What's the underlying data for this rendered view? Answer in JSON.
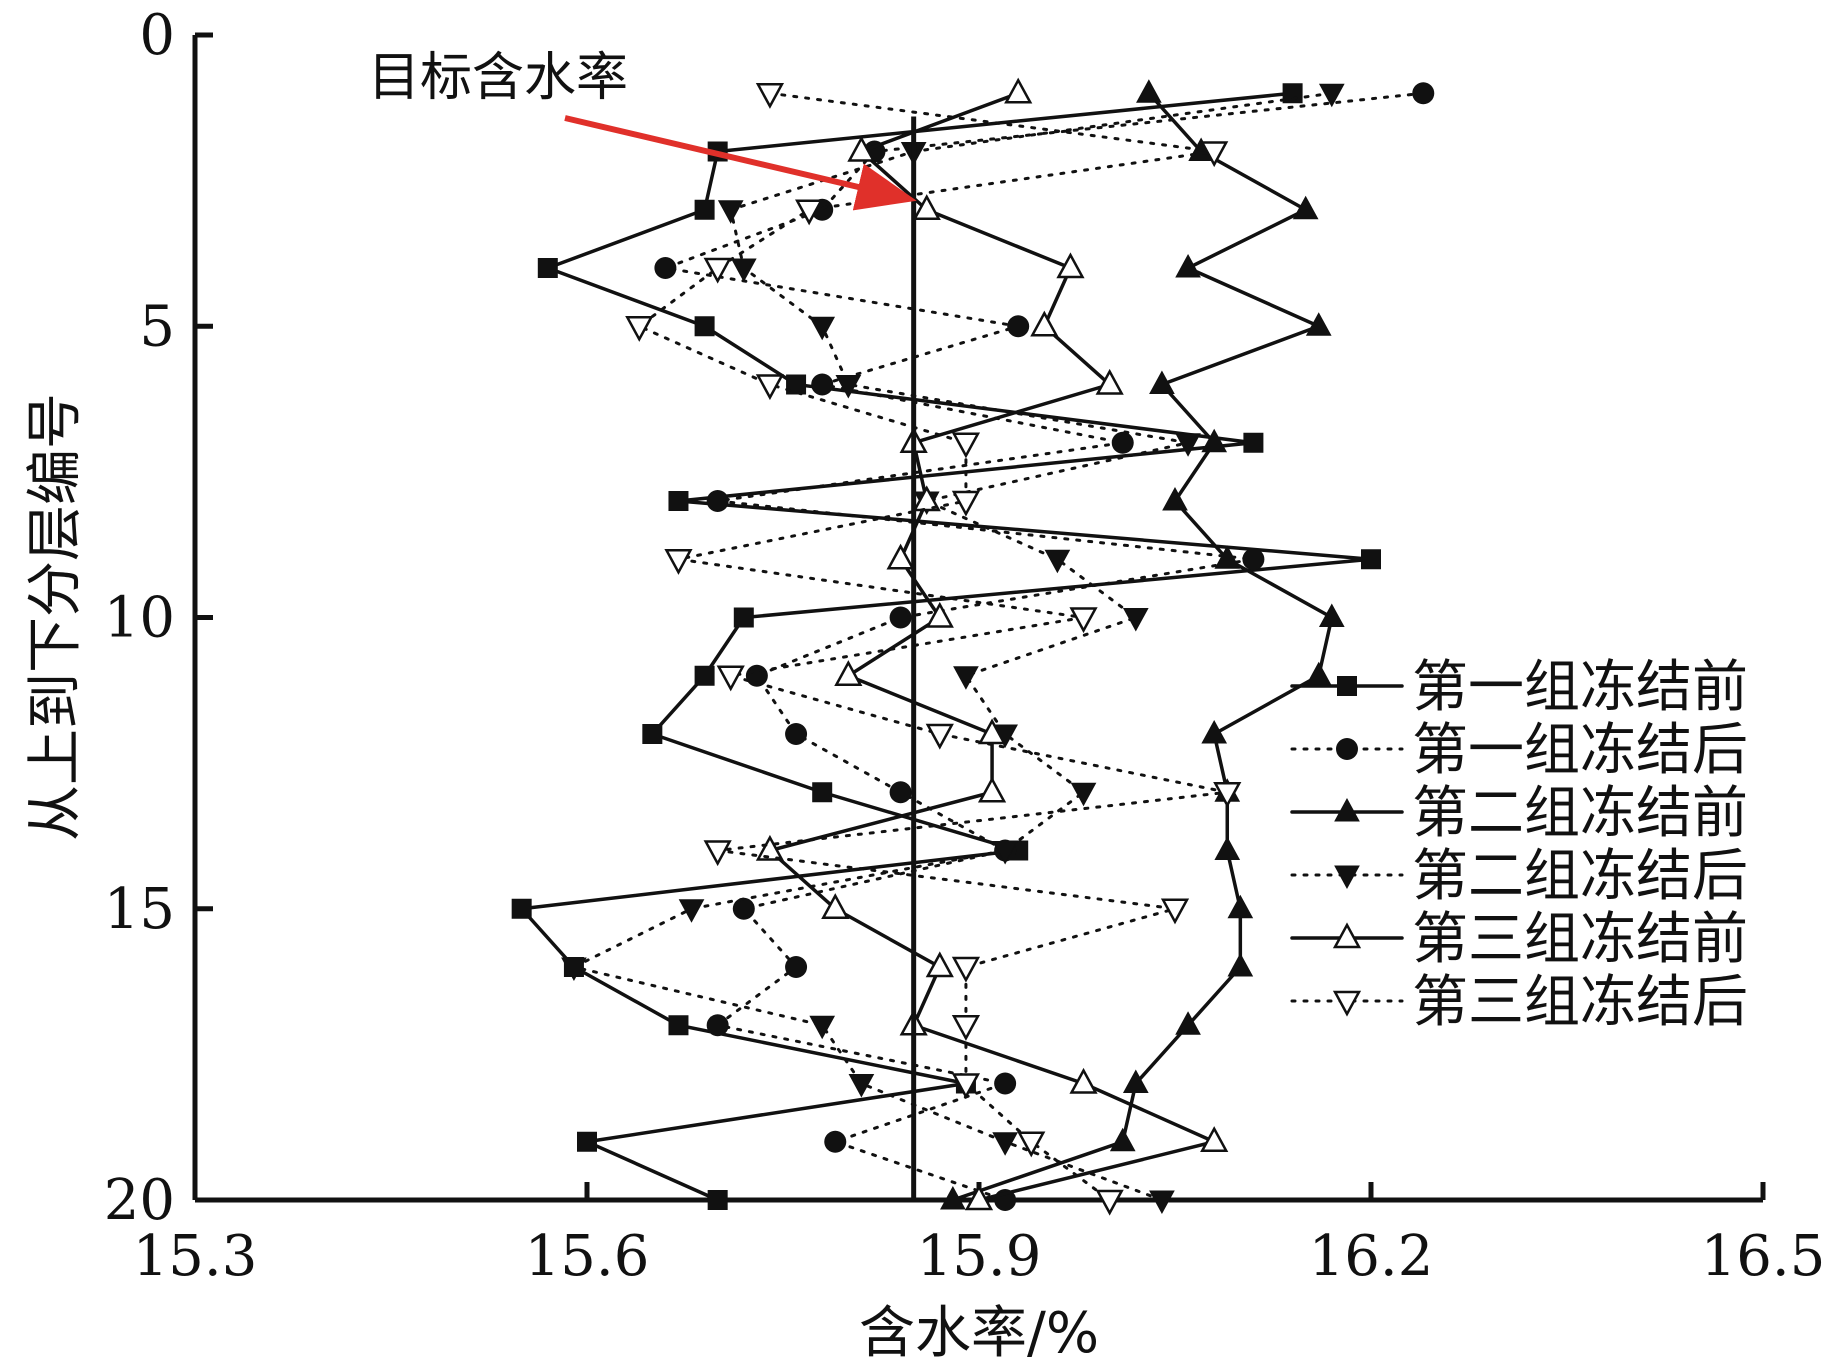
{
  "chart_data": {
    "type": "line",
    "title": "",
    "xlabel": "含水率/%",
    "ylabel": "从上到下分层编号",
    "xlim": [
      15.3,
      16.5
    ],
    "ylim": [
      0,
      20
    ],
    "y_inverted": true,
    "x_ticks": [
      "15.3",
      "15.6",
      "15.9",
      "16.2",
      "16.5"
    ],
    "y_ticks": [
      "0",
      "5",
      "10",
      "15",
      "20"
    ],
    "grid": false,
    "legend_position": "bottom-right",
    "target_line": {
      "x": 15.85
    },
    "annotation": {
      "text": "目标含水率"
    },
    "layers": [
      1,
      2,
      3,
      4,
      5,
      6,
      7,
      8,
      9,
      10,
      11,
      12,
      13,
      14,
      15,
      16,
      17,
      18,
      19,
      20
    ],
    "series": [
      {
        "name": "第一组冻结前",
        "line": "solid",
        "marker": "square-filled",
        "values": [
          16.14,
          15.7,
          15.69,
          15.57,
          15.69,
          15.76,
          16.11,
          15.67,
          16.2,
          15.72,
          15.69,
          15.65,
          15.78,
          15.93,
          15.55,
          15.59,
          15.67,
          15.89,
          15.6,
          15.7
        ]
      },
      {
        "name": "第一组冻结后",
        "line": "dotted",
        "marker": "circle-filled",
        "values": [
          16.24,
          15.82,
          15.78,
          15.66,
          15.93,
          15.78,
          16.01,
          15.7,
          16.11,
          15.84,
          15.73,
          15.76,
          15.84,
          15.92,
          15.72,
          15.76,
          15.7,
          15.92,
          15.79,
          15.92
        ]
      },
      {
        "name": "第二组冻结前",
        "line": "solid",
        "marker": "triangle-up-filled",
        "values": [
          16.03,
          16.07,
          16.15,
          16.06,
          16.16,
          16.04,
          16.08,
          16.05,
          16.09,
          16.17,
          16.16,
          16.08,
          16.09,
          16.09,
          16.1,
          16.1,
          16.06,
          16.02,
          16.01,
          15.88
        ]
      },
      {
        "name": "第二组冻结后",
        "line": "dotted",
        "marker": "triangle-down-filled",
        "values": [
          16.17,
          15.85,
          15.71,
          15.72,
          15.78,
          15.8,
          16.06,
          15.86,
          15.96,
          16.02,
          15.89,
          15.92,
          15.98,
          15.92,
          15.68,
          15.59,
          15.78,
          15.81,
          15.92,
          16.04
        ]
      },
      {
        "name": "第三组冻结前",
        "line": "solid",
        "marker": "triangle-up-open",
        "values": [
          15.93,
          15.81,
          15.86,
          15.97,
          15.95,
          16.0,
          15.85,
          15.86,
          15.84,
          15.87,
          15.8,
          15.91,
          15.91,
          15.74,
          15.79,
          15.87,
          15.85,
          15.98,
          16.08,
          15.9
        ]
      },
      {
        "name": "第三组冻结后",
        "line": "dotted",
        "marker": "triangle-down-open",
        "values": [
          15.74,
          16.08,
          15.77,
          15.7,
          15.64,
          15.74,
          15.89,
          15.89,
          15.67,
          15.98,
          15.71,
          15.87,
          16.09,
          15.7,
          16.05,
          15.89,
          15.89,
          15.89,
          15.94,
          16.0
        ]
      }
    ]
  }
}
